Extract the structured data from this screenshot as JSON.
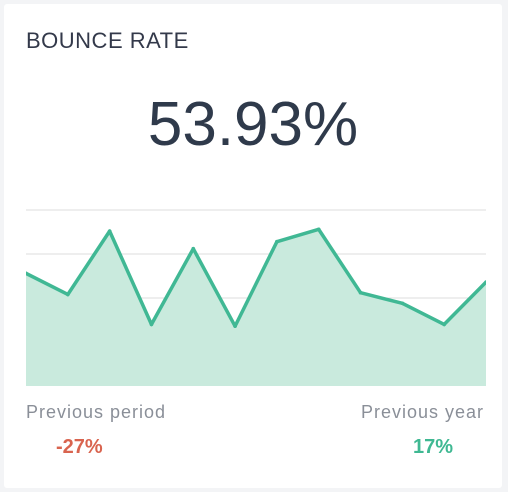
{
  "widget": {
    "title": "BOUNCE RATE",
    "value": "53.93%"
  },
  "chart_data": {
    "type": "area",
    "values": [
      64,
      52,
      88,
      35,
      78,
      34,
      82,
      89,
      53,
      47,
      35,
      59
    ]
  },
  "comparisons": [
    {
      "label": "Previous period",
      "value": "-27%"
    },
    {
      "label": "Previous year",
      "value": "17%"
    }
  ],
  "colors": {
    "line": "#40b894",
    "fill": "#c9eadd",
    "grid": "#dcdcdc",
    "negative": "#d9644f",
    "positive": "#3fb892"
  }
}
